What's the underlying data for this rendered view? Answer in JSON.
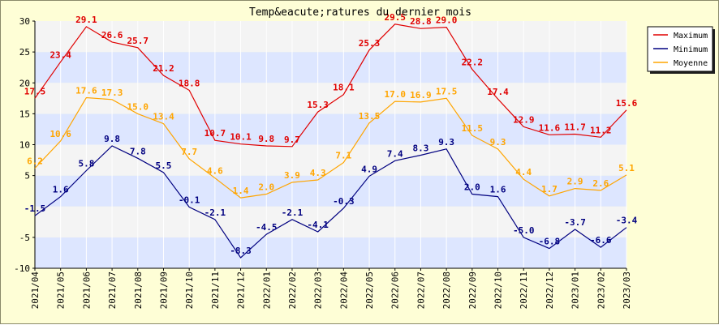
{
  "colors": {
    "background": "#fefed6",
    "plot_band_a": "#dde6ff",
    "plot_band_b": "#f4f4f4",
    "maximum": "#e00000",
    "minimum": "#000080",
    "moyenne": "#ffa500"
  },
  "chart_data": {
    "type": "line",
    "title": "Temp&eacute;ratures du dernier mois",
    "xlabel": "",
    "ylabel": "",
    "ylim": [
      -10,
      30
    ],
    "yticks": [
      "-10",
      "-5",
      "5",
      "10",
      "15",
      "20",
      "25",
      "30"
    ],
    "grid": "horizontal alternating bands",
    "legend_position": "top-right",
    "categories": [
      "2021/04",
      "2021/05",
      "2021/06",
      "2021/07",
      "2021/08",
      "2021/09",
      "2021/10",
      "2021/11",
      "2021/12",
      "2022/01",
      "2022/02",
      "2022/03",
      "2022/04",
      "2022/05",
      "2022/06",
      "2022/07",
      "2022/08",
      "2022/09",
      "2022/10",
      "2022/11",
      "2022/12",
      "2023/01",
      "2023/02",
      "2023/03"
    ],
    "series": [
      {
        "name": "Maximum",
        "color": "#e00000",
        "values": [
          17.5,
          23.4,
          29.1,
          26.6,
          25.7,
          21.2,
          18.8,
          10.7,
          10.1,
          9.8,
          9.7,
          15.3,
          18.1,
          25.3,
          29.5,
          28.8,
          29.0,
          22.2,
          17.4,
          12.9,
          11.6,
          11.7,
          11.2,
          15.6
        ]
      },
      {
        "name": "Minimum",
        "color": "#000080",
        "values": [
          -1.5,
          1.6,
          5.8,
          9.8,
          7.8,
          5.5,
          -0.1,
          -2.1,
          -8.3,
          -4.5,
          -2.1,
          -4.1,
          -0.3,
          4.9,
          7.4,
          8.3,
          9.3,
          2.0,
          1.6,
          -5.0,
          -6.8,
          -3.7,
          -6.6,
          -3.4
        ]
      },
      {
        "name": "Moyenne",
        "color": "#ffa500",
        "values": [
          6.2,
          10.6,
          17.6,
          17.3,
          15.0,
          13.4,
          7.7,
          4.6,
          1.4,
          2.0,
          3.9,
          4.3,
          7.1,
          13.5,
          17.0,
          16.9,
          17.5,
          11.5,
          9.3,
          4.4,
          1.7,
          2.9,
          2.6,
          5.1
        ]
      }
    ]
  }
}
